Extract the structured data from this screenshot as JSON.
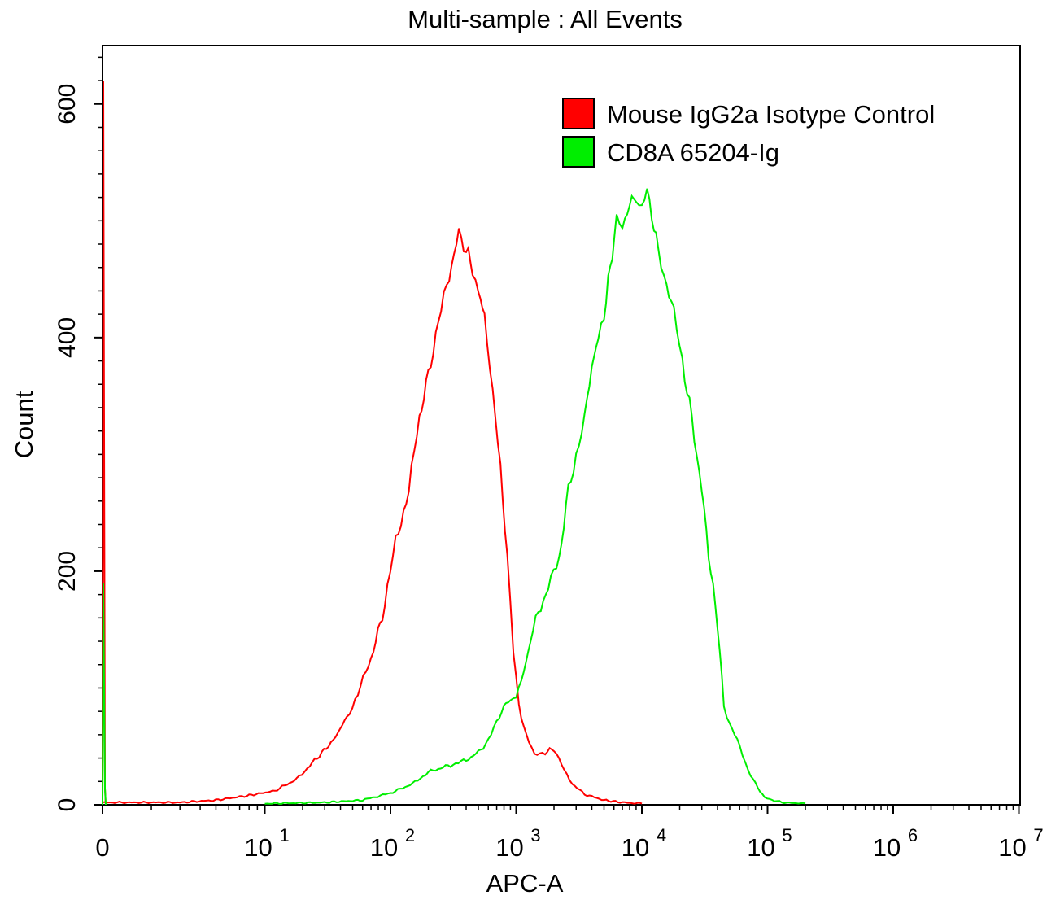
{
  "chart_data": {
    "type": "histogram",
    "title": "Multi-sample : All Events",
    "xlabel": "APC-A",
    "ylabel": "Count",
    "x_scale": "log (biexponential, zero at left edge)",
    "xlim": [
      0,
      10000000
    ],
    "ylim": [
      0,
      650
    ],
    "y_ticks": [
      {
        "value": 0,
        "label": "0"
      },
      {
        "value": 200,
        "label": "200"
      },
      {
        "value": 400,
        "label": "400"
      },
      {
        "value": 600,
        "label": "600"
      }
    ],
    "x_ticks": [
      {
        "value": 0,
        "label": "0",
        "exp": ""
      },
      {
        "value": 10,
        "label": "10",
        "exp": "1"
      },
      {
        "value": 100,
        "label": "10",
        "exp": "2"
      },
      {
        "value": 1000,
        "label": "10",
        "exp": "3"
      },
      {
        "value": 10000,
        "label": "10",
        "exp": "4"
      },
      {
        "value": 100000,
        "label": "10",
        "exp": "5"
      },
      {
        "value": 1000000,
        "label": "10",
        "exp": "6"
      },
      {
        "value": 10000000,
        "label": "10",
        "exp": "7"
      }
    ],
    "legend_position": "top-right",
    "series": [
      {
        "name": "Mouse IgG2a Isotype Control",
        "color": "#ff0000",
        "points": [
          [
            1,
            2
          ],
          [
            3,
            2
          ],
          [
            5,
            4
          ],
          [
            8,
            8
          ],
          [
            12,
            12
          ],
          [
            18,
            22
          ],
          [
            25,
            38
          ],
          [
            35,
            55
          ],
          [
            45,
            75
          ],
          [
            55,
            95
          ],
          [
            70,
            125
          ],
          [
            90,
            170
          ],
          [
            110,
            225
          ],
          [
            140,
            270
          ],
          [
            170,
            330
          ],
          [
            200,
            370
          ],
          [
            240,
            410
          ],
          [
            280,
            445
          ],
          [
            320,
            470
          ],
          [
            350,
            490
          ],
          [
            400,
            475
          ],
          [
            450,
            460
          ],
          [
            500,
            440
          ],
          [
            560,
            420
          ],
          [
            650,
            350
          ],
          [
            750,
            290
          ],
          [
            850,
            210
          ],
          [
            950,
            130
          ],
          [
            1050,
            85
          ],
          [
            1200,
            60
          ],
          [
            1400,
            42
          ],
          [
            1700,
            45
          ],
          [
            2000,
            48
          ],
          [
            2400,
            30
          ],
          [
            2800,
            18
          ],
          [
            3500,
            9
          ],
          [
            5000,
            4
          ],
          [
            7000,
            2
          ],
          [
            10000,
            1
          ]
        ],
        "zero_spike": [
          0,
          620
        ]
      },
      {
        "name": "CD8A 65204-Ig",
        "color": "#00ee00",
        "points": [
          [
            10,
            1
          ],
          [
            30,
            2
          ],
          [
            60,
            4
          ],
          [
            100,
            10
          ],
          [
            150,
            18
          ],
          [
            200,
            28
          ],
          [
            300,
            34
          ],
          [
            400,
            38
          ],
          [
            500,
            45
          ],
          [
            600,
            55
          ],
          [
            700,
            70
          ],
          [
            800,
            85
          ],
          [
            900,
            90
          ],
          [
            1000,
            95
          ],
          [
            1100,
            105
          ],
          [
            1300,
            140
          ],
          [
            1500,
            165
          ],
          [
            1800,
            185
          ],
          [
            2200,
            210
          ],
          [
            2600,
            270
          ],
          [
            3000,
            300
          ],
          [
            3500,
            330
          ],
          [
            4000,
            375
          ],
          [
            4500,
            400
          ],
          [
            5000,
            420
          ],
          [
            5600,
            460
          ],
          [
            6300,
            500
          ],
          [
            7000,
            495
          ],
          [
            8000,
            515
          ],
          [
            9000,
            520
          ],
          [
            10000,
            510
          ],
          [
            11000,
            525
          ],
          [
            12000,
            505
          ],
          [
            13500,
            475
          ],
          [
            15000,
            455
          ],
          [
            18000,
            420
          ],
          [
            21000,
            380
          ],
          [
            25000,
            330
          ],
          [
            30000,
            270
          ],
          [
            34000,
            215
          ],
          [
            40000,
            155
          ],
          [
            45000,
            85
          ],
          [
            50000,
            70
          ],
          [
            60000,
            50
          ],
          [
            70000,
            30
          ],
          [
            80000,
            18
          ],
          [
            95000,
            6
          ],
          [
            130000,
            2
          ],
          [
            200000,
            1
          ]
        ],
        "zero_spike": [
          0,
          190
        ]
      }
    ]
  }
}
